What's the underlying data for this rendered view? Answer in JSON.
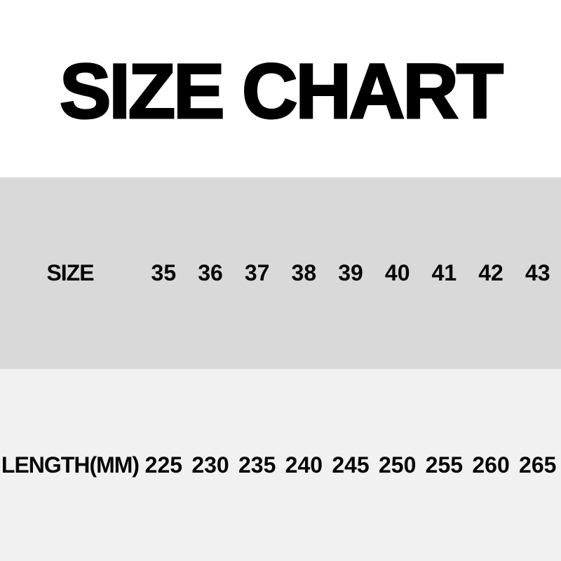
{
  "title": "SIZE CHART",
  "colors": {
    "background": "#ffffff",
    "size_band": "#d9d9d9",
    "length_band": "#f1f1f1",
    "text": "#000000"
  },
  "chart_data": {
    "type": "table",
    "title": "SIZE CHART",
    "rows": [
      {
        "label": "SIZE",
        "values": [
          "35",
          "36",
          "37",
          "38",
          "39",
          "40",
          "41",
          "42",
          "43"
        ]
      },
      {
        "label": "LENGTH(MM)",
        "values": [
          "225",
          "230",
          "235",
          "240",
          "245",
          "250",
          "255",
          "260",
          "265"
        ]
      }
    ]
  }
}
